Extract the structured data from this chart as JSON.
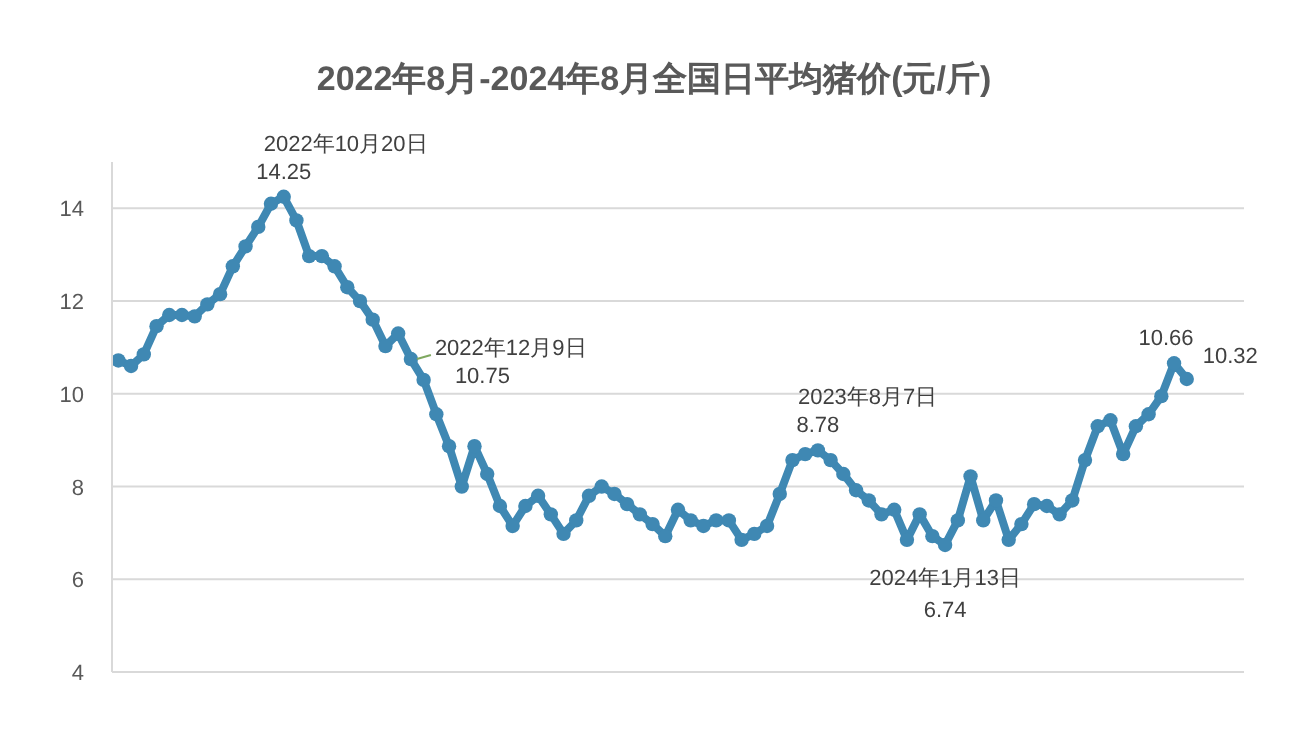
{
  "chart_data": {
    "type": "line",
    "title": "2022年8月-2024年8月全国日平均猪价(元/斤)",
    "categories": [
      null,
      null,
      null,
      null,
      null,
      null,
      null,
      null,
      null,
      null,
      null,
      null,
      null,
      null,
      null,
      null,
      null,
      null,
      null,
      null,
      null,
      null,
      null,
      null,
      null,
      null,
      null,
      null,
      null,
      null,
      null,
      null,
      null,
      null,
      null,
      null,
      null,
      null,
      null,
      null,
      null,
      null,
      null,
      null,
      null,
      null,
      null,
      null,
      null,
      null,
      null,
      null,
      null,
      null,
      null,
      null,
      null,
      null,
      null,
      null,
      null,
      null,
      null,
      null,
      null,
      null,
      null,
      null,
      null,
      null,
      null,
      null,
      null,
      null,
      null,
      null,
      null,
      null,
      null,
      null,
      null,
      null,
      null,
      null,
      null,
      null,
      null,
      null,
      null
    ],
    "series": [
      {
        "color": "#3f88b3",
        "values": [
          10.72,
          10.6,
          10.85,
          11.46,
          11.7,
          11.7,
          11.67,
          11.93,
          12.15,
          12.75,
          13.18,
          13.6,
          14.1,
          14.25,
          13.74,
          12.97,
          12.97,
          12.75,
          12.3,
          12.0,
          11.6,
          11.03,
          11.3,
          10.75,
          10.3,
          9.56,
          8.87,
          8.0,
          8.87,
          8.27,
          7.58,
          7.15,
          7.58,
          7.8,
          7.4,
          6.98,
          7.27,
          7.8,
          8.0,
          7.84,
          7.62,
          7.4,
          7.19,
          6.93,
          7.5,
          7.27,
          7.15,
          7.27,
          7.27,
          6.85,
          6.98,
          7.15,
          7.84,
          8.57,
          8.7,
          8.78,
          8.57,
          8.27,
          7.92,
          7.7,
          7.4,
          7.5,
          6.85,
          7.4,
          6.93,
          6.74,
          7.27,
          8.22,
          7.27,
          7.7,
          6.85,
          7.19,
          7.62,
          7.58,
          7.4,
          7.7,
          8.57,
          9.3,
          9.43,
          8.7,
          9.3,
          9.56,
          9.95,
          10.66,
          10.32,
          null,
          null,
          null,
          null
        ],
        "value_labels": [
          null,
          null,
          null,
          null,
          null,
          null,
          null,
          null,
          null,
          null,
          null,
          null,
          null,
          "14.25",
          null,
          null,
          null,
          null,
          null,
          null,
          null,
          null,
          null,
          "10.75",
          null,
          null,
          null,
          null,
          null,
          null,
          null,
          null,
          null,
          null,
          null,
          null,
          null,
          null,
          null,
          null,
          null,
          null,
          null,
          null,
          null,
          null,
          null,
          null,
          null,
          null,
          null,
          null,
          null,
          null,
          null,
          "8.78",
          null,
          null,
          null,
          null,
          null,
          null,
          null,
          null,
          null,
          "6.74",
          null,
          null,
          null,
          null,
          null,
          null,
          null,
          null,
          null,
          null,
          null,
          null,
          null,
          null,
          null,
          null,
          null,
          "10.66",
          "10.32",
          null,
          null,
          null,
          null
        ]
      }
    ],
    "annotations": [
      "2022年10月20日",
      "2022年12月9日",
      "2023年8月7日",
      "2024年1月13日"
    ],
    "ylim": [
      4,
      15
    ],
    "yticks": [
      4,
      6,
      8,
      10,
      12,
      14
    ],
    "grid": "y",
    "marker": "circle"
  }
}
